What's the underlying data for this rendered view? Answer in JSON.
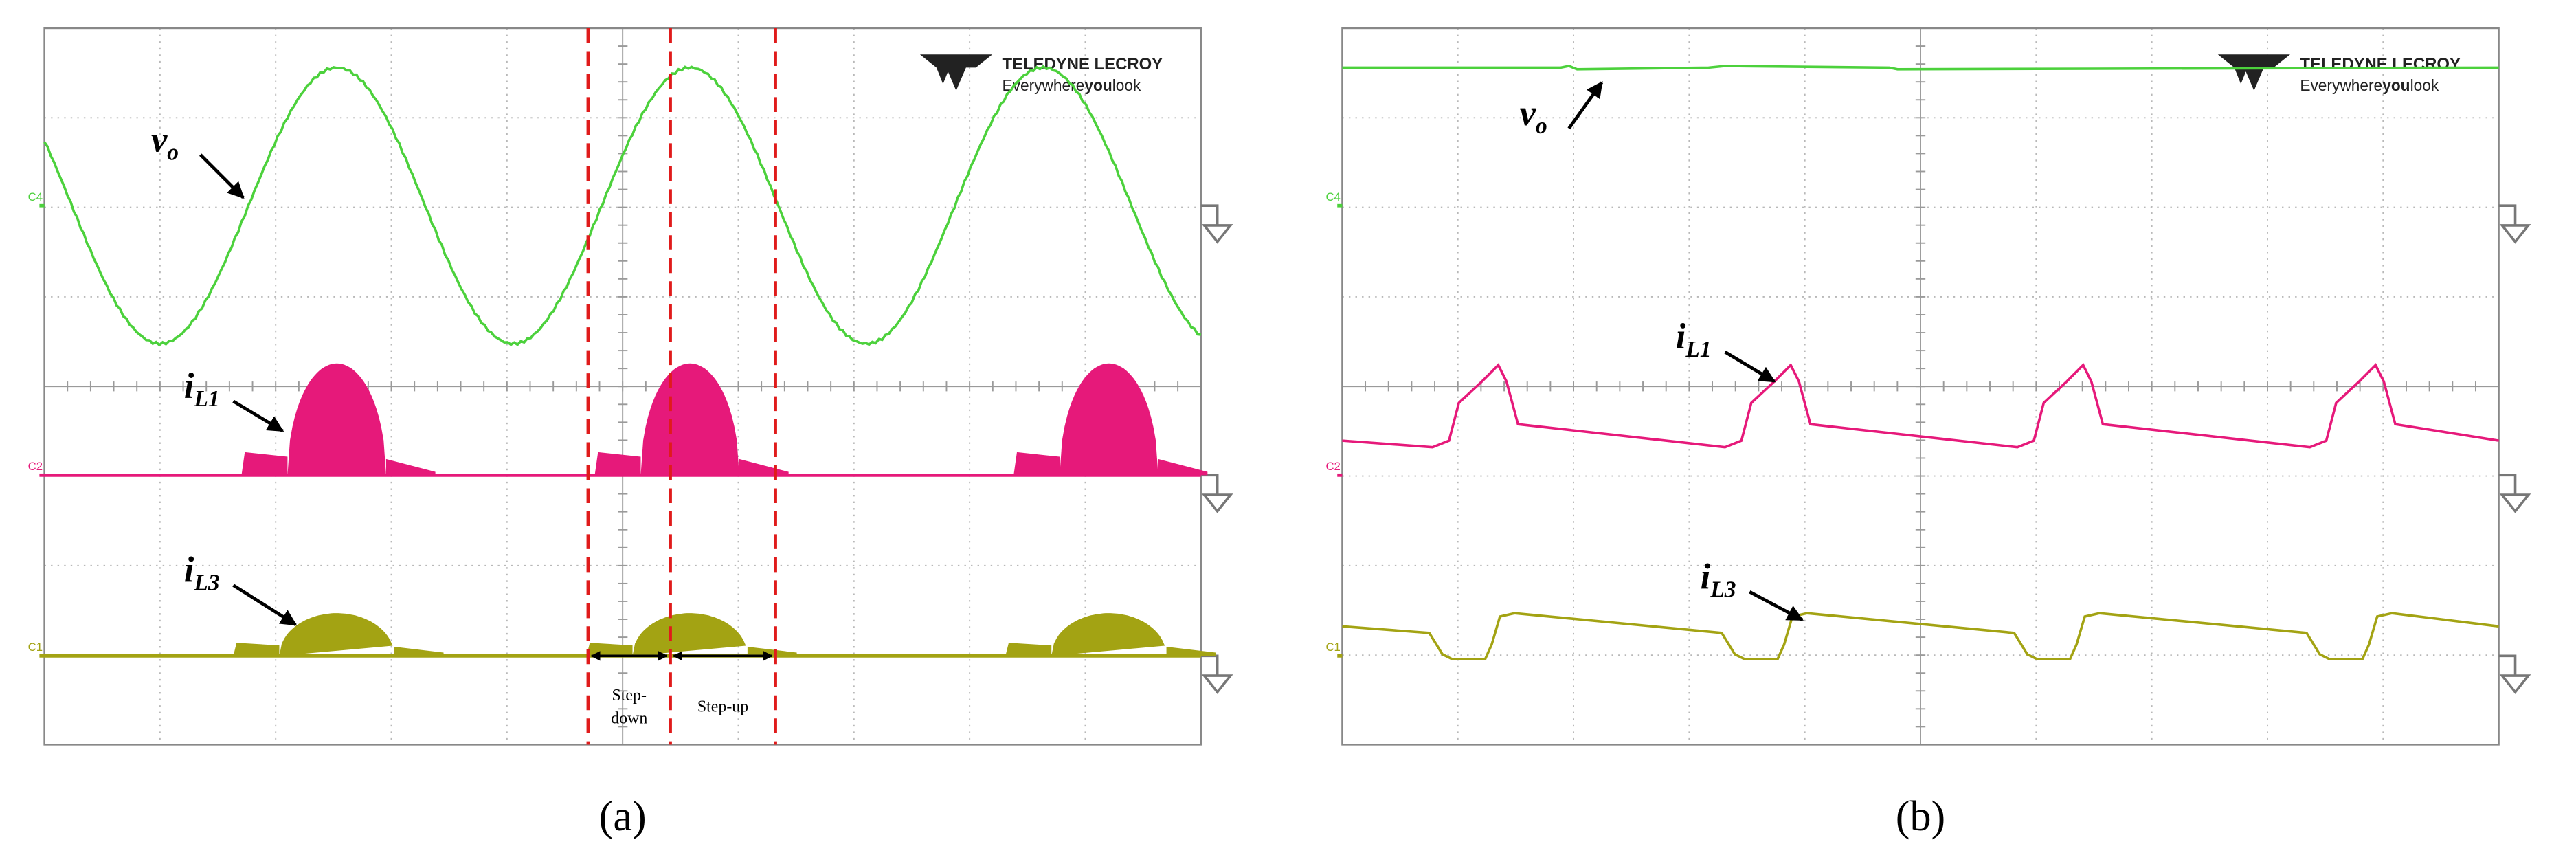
{
  "panels": [
    {
      "caption": "(a)",
      "logo": {
        "brand": "TELEDYNE LECROY",
        "tagline": [
          "Everywhere",
          "you",
          "look"
        ]
      },
      "channels": [
        "C4",
        "C2",
        "C1"
      ],
      "signals": [
        {
          "symbol": "v",
          "sub": "o"
        },
        {
          "symbol": "i",
          "sub": "L1"
        },
        {
          "symbol": "i",
          "sub": "L3"
        }
      ],
      "intervals": [
        [
          "Step-",
          "down"
        ],
        [
          "Step-up"
        ]
      ]
    },
    {
      "caption": "(b)",
      "logo": {
        "brand": "TELEDYNE LECROY",
        "tagline": [
          "Everywhere",
          "you",
          "look"
        ]
      },
      "channels": [
        "C4",
        "C2",
        "C1"
      ],
      "signals": [
        {
          "symbol": "v",
          "sub": "o"
        },
        {
          "symbol": "i",
          "sub": "L1"
        },
        {
          "symbol": "i",
          "sub": "L3"
        }
      ]
    }
  ]
}
